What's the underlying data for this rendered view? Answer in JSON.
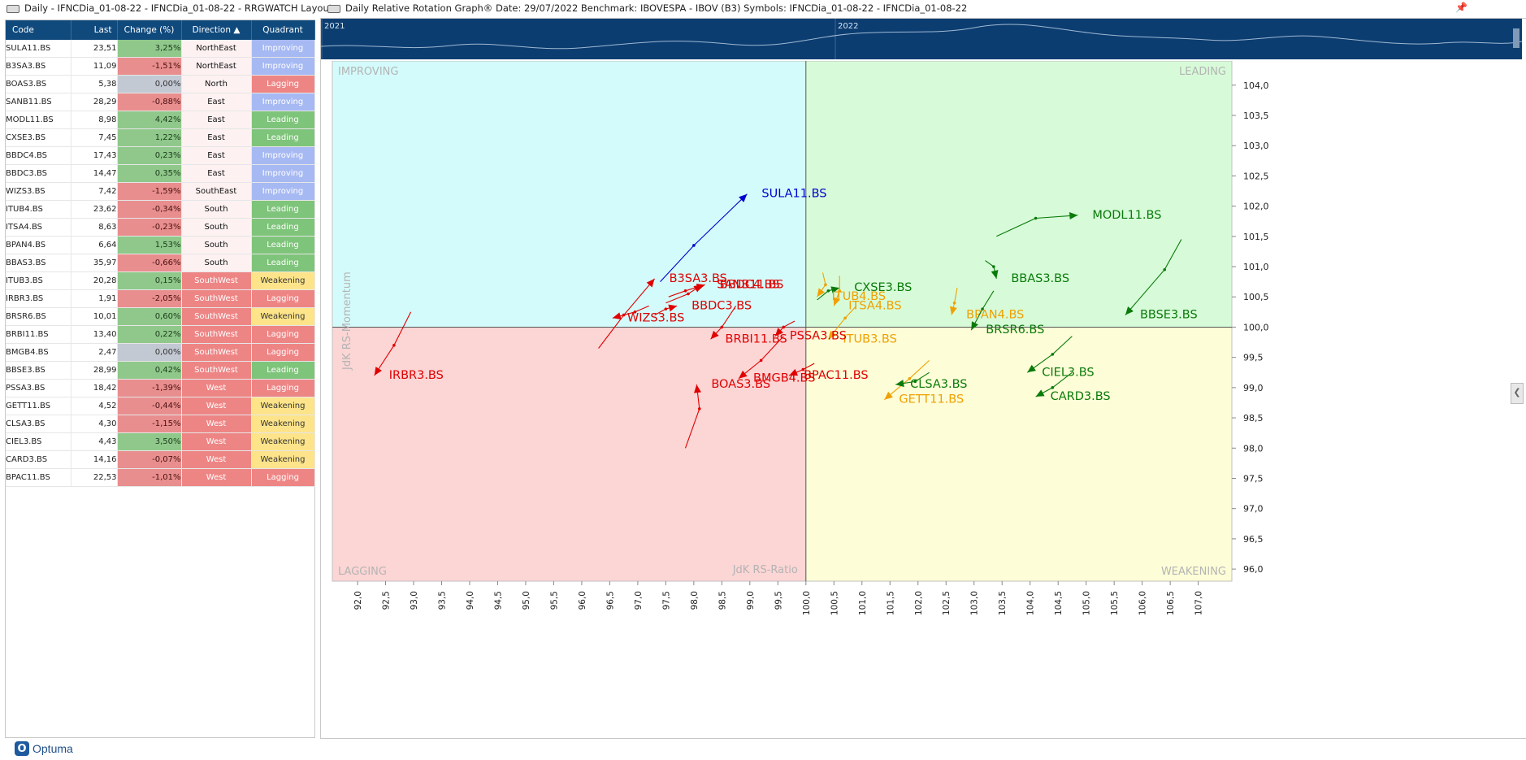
{
  "left_panel": {
    "title": "Daily - IFNCDia_01-08-22 - IFNCDia_01-08-22 - RRGWATCH Layout"
  },
  "right_panel": {
    "title": "Daily Relative Rotation Graph®   Date: 29/07/2022  Benchmark: IBOVESPA - IBOV (B3)  Symbols: IFNCDia_01-08-22 - IFNCDia_01-08-22"
  },
  "columns": [
    "Code",
    "Last",
    "Change (%)",
    "Direction",
    "Quadrant"
  ],
  "rows": [
    {
      "code": "SULA11.BS",
      "last": "23,51",
      "change": "3,25%",
      "direction": "NorthEast",
      "quadrant": "Improving"
    },
    {
      "code": "B3SA3.BS",
      "last": "11,09",
      "change": "-1,51%",
      "direction": "NorthEast",
      "quadrant": "Improving"
    },
    {
      "code": "BOAS3.BS",
      "last": "5,38",
      "change": "0,00%",
      "direction": "North",
      "quadrant": "Lagging"
    },
    {
      "code": "SANB11.BS",
      "last": "28,29",
      "change": "-0,88%",
      "direction": "East",
      "quadrant": "Improving"
    },
    {
      "code": "MODL11.BS",
      "last": "8,98",
      "change": "4,42%",
      "direction": "East",
      "quadrant": "Leading"
    },
    {
      "code": "CXSE3.BS",
      "last": "7,45",
      "change": "1,22%",
      "direction": "East",
      "quadrant": "Leading"
    },
    {
      "code": "BBDC4.BS",
      "last": "17,43",
      "change": "0,23%",
      "direction": "East",
      "quadrant": "Improving"
    },
    {
      "code": "BBDC3.BS",
      "last": "14,47",
      "change": "0,35%",
      "direction": "East",
      "quadrant": "Improving"
    },
    {
      "code": "WIZS3.BS",
      "last": "7,42",
      "change": "-1,59%",
      "direction": "SouthEast",
      "quadrant": "Improving"
    },
    {
      "code": "ITUB4.BS",
      "last": "23,62",
      "change": "-0,34%",
      "direction": "South",
      "quadrant": "Leading"
    },
    {
      "code": "ITSA4.BS",
      "last": "8,63",
      "change": "-0,23%",
      "direction": "South",
      "quadrant": "Leading"
    },
    {
      "code": "BPAN4.BS",
      "last": "6,64",
      "change": "1,53%",
      "direction": "South",
      "quadrant": "Leading"
    },
    {
      "code": "BBAS3.BS",
      "last": "35,97",
      "change": "-0,66%",
      "direction": "South",
      "quadrant": "Leading"
    },
    {
      "code": "ITUB3.BS",
      "last": "20,28",
      "change": "0,15%",
      "direction": "SouthWest",
      "quadrant": "Weakening"
    },
    {
      "code": "IRBR3.BS",
      "last": "1,91",
      "change": "-2,05%",
      "direction": "SouthWest",
      "quadrant": "Lagging"
    },
    {
      "code": "BRSR6.BS",
      "last": "10,01",
      "change": "0,60%",
      "direction": "SouthWest",
      "quadrant": "Weakening"
    },
    {
      "code": "BRBI11.BS",
      "last": "13,40",
      "change": "0,22%",
      "direction": "SouthWest",
      "quadrant": "Lagging"
    },
    {
      "code": "BMGB4.BS",
      "last": "2,47",
      "change": "0,00%",
      "direction": "SouthWest",
      "quadrant": "Lagging"
    },
    {
      "code": "BBSE3.BS",
      "last": "28,99",
      "change": "0,42%",
      "direction": "SouthWest",
      "quadrant": "Leading"
    },
    {
      "code": "PSSA3.BS",
      "last": "18,42",
      "change": "-1,39%",
      "direction": "West",
      "quadrant": "Lagging"
    },
    {
      "code": "GETT11.BS",
      "last": "4,52",
      "change": "-0,44%",
      "direction": "West",
      "quadrant": "Weakening"
    },
    {
      "code": "CLSA3.BS",
      "last": "4,30",
      "change": "-1,15%",
      "direction": "West",
      "quadrant": "Weakening"
    },
    {
      "code": "CIEL3.BS",
      "last": "4,43",
      "change": "3,50%",
      "direction": "West",
      "quadrant": "Weakening"
    },
    {
      "code": "CARD3.BS",
      "last": "14,16",
      "change": "-0,07%",
      "direction": "West",
      "quadrant": "Weakening"
    },
    {
      "code": "BPAC11.BS",
      "last": "22,53",
      "change": "-1,01%",
      "direction": "West",
      "quadrant": "Lagging"
    }
  ],
  "logo_text": "Optuma",
  "timeline": {
    "years": [
      "2021",
      "2022"
    ]
  },
  "chart_data": {
    "type": "scatter",
    "title": "Daily Relative Rotation Graph®",
    "xlabel": "JdK RS-Ratio",
    "ylabel": "JdK RS-Momentum",
    "xlim": [
      91.55,
      107.6
    ],
    "ylim": [
      95.8,
      104.4
    ],
    "xticks": [
      "92,0",
      "92,5",
      "93,0",
      "93,5",
      "94,0",
      "94,5",
      "95,0",
      "95,5",
      "96,0",
      "96,5",
      "97,0",
      "97,5",
      "98,0",
      "98,5",
      "99,0",
      "99,5",
      "100,0",
      "100,5",
      "101,0",
      "101,5",
      "102,0",
      "102,5",
      "103,0",
      "103,5",
      "104,0",
      "104,5",
      "105,0",
      "105,5",
      "106,0",
      "106,5",
      "107,0"
    ],
    "yticks": [
      "96,0",
      "96,5",
      "97,0",
      "97,5",
      "98,0",
      "98,5",
      "99,0",
      "99,5",
      "100,0",
      "100,5",
      "101,0",
      "101,5",
      "102,0",
      "102,5",
      "103,0",
      "103,5",
      "104,0"
    ],
    "quadrants": {
      "improving": "IMPROVING",
      "leading": "LEADING",
      "lagging": "LAGGING",
      "weakening": "WEAKENING"
    },
    "colors": {
      "improving": "#d4fbfb",
      "leading": "#d7fbd8",
      "lagging": "#fcd5d5",
      "weakening": "#fdfdd7",
      "lead_line": "#0a7a0a",
      "lag_line": "#e00000",
      "imp_line": "#0000d0",
      "weak_line": "#f0a000",
      "axis_label": "#b4b4b4"
    },
    "series": [
      {
        "name": "SULA11.BS",
        "color": "#0000d0",
        "points": [
          [
            97.4,
            100.75
          ],
          [
            98.0,
            101.35
          ],
          [
            98.95,
            102.2
          ]
        ]
      },
      {
        "name": "B3SA3.BS",
        "color": "#e00000",
        "points": [
          [
            96.3,
            99.65
          ],
          [
            96.75,
            100.2
          ],
          [
            97.3,
            100.8
          ]
        ]
      },
      {
        "name": "BOAS3.BS",
        "color": "#e00000",
        "points": [
          [
            97.85,
            98.0
          ],
          [
            98.1,
            98.65
          ],
          [
            98.05,
            99.05
          ]
        ]
      },
      {
        "name": "SANB11.BS",
        "color": "#e00000",
        "points": [
          [
            97.5,
            100.4
          ],
          [
            97.9,
            100.55
          ],
          [
            98.15,
            100.7
          ]
        ]
      },
      {
        "name": "MODL11.BS",
        "color": "#0a7a0a",
        "points": [
          [
            103.4,
            101.5
          ],
          [
            104.1,
            101.8
          ],
          [
            104.85,
            101.85
          ]
        ]
      },
      {
        "name": "CXSE3.BS",
        "color": "#0a7a0a",
        "points": [
          [
            100.2,
            100.45
          ],
          [
            100.4,
            100.6
          ],
          [
            100.6,
            100.65
          ]
        ]
      },
      {
        "name": "BBDC4.BS",
        "color": "#e00000",
        "points": [
          [
            97.55,
            100.5
          ],
          [
            97.85,
            100.6
          ],
          [
            98.2,
            100.7
          ]
        ]
      },
      {
        "name": "BBDC3.BS",
        "color": "#e00000",
        "points": [
          [
            97.3,
            100.2
          ],
          [
            97.5,
            100.3
          ],
          [
            97.7,
            100.35
          ]
        ]
      },
      {
        "name": "WIZS3.BS",
        "color": "#e00000",
        "points": [
          [
            97.2,
            100.35
          ],
          [
            96.95,
            100.25
          ],
          [
            96.55,
            100.15
          ]
        ]
      },
      {
        "name": "ITUB4.BS",
        "color": "#f0a000",
        "points": [
          [
            100.3,
            100.9
          ],
          [
            100.35,
            100.7
          ],
          [
            100.2,
            100.5
          ]
        ]
      },
      {
        "name": "ITSA4.BS",
        "color": "#f0a000",
        "points": [
          [
            100.6,
            100.85
          ],
          [
            100.6,
            100.6
          ],
          [
            100.5,
            100.35
          ]
        ]
      },
      {
        "name": "BPAN4.BS",
        "color": "#f0a000",
        "points": [
          [
            102.7,
            100.65
          ],
          [
            102.65,
            100.4
          ],
          [
            102.6,
            100.2
          ]
        ]
      },
      {
        "name": "BBAS3.BS",
        "color": "#0a7a0a",
        "points": [
          [
            103.2,
            101.1
          ],
          [
            103.35,
            101.0
          ],
          [
            103.4,
            100.8
          ]
        ]
      },
      {
        "name": "ITUB3.BS",
        "color": "#f0a000",
        "points": [
          [
            100.9,
            100.35
          ],
          [
            100.7,
            100.15
          ],
          [
            100.4,
            99.8
          ]
        ]
      },
      {
        "name": "IRBR3.BS",
        "color": "#e00000",
        "points": [
          [
            92.95,
            100.25
          ],
          [
            92.65,
            99.7
          ],
          [
            92.3,
            99.2
          ]
        ]
      },
      {
        "name": "BRSR6.BS",
        "color": "#0a7a0a",
        "points": [
          [
            103.35,
            100.6
          ],
          [
            103.15,
            100.3
          ],
          [
            102.95,
            99.95
          ]
        ]
      },
      {
        "name": "BRBI11.BS",
        "color": "#e00000",
        "points": [
          [
            98.75,
            100.35
          ],
          [
            98.5,
            100.0
          ],
          [
            98.3,
            99.8
          ]
        ]
      },
      {
        "name": "BMGB4.BS",
        "color": "#e00000",
        "points": [
          [
            99.6,
            99.85
          ],
          [
            99.2,
            99.45
          ],
          [
            98.8,
            99.15
          ]
        ]
      },
      {
        "name": "BBSE3.BS",
        "color": "#0a7a0a",
        "points": [
          [
            106.7,
            101.45
          ],
          [
            106.4,
            100.95
          ],
          [
            105.7,
            100.2
          ]
        ]
      },
      {
        "name": "PSSA3.BS",
        "color": "#e00000",
        "points": [
          [
            99.8,
            100.1
          ],
          [
            99.6,
            100.0
          ],
          [
            99.45,
            99.85
          ]
        ]
      },
      {
        "name": "GETT11.BS",
        "color": "#f0a000",
        "points": [
          [
            102.2,
            99.45
          ],
          [
            101.85,
            99.15
          ],
          [
            101.4,
            98.8
          ]
        ]
      },
      {
        "name": "CLSA3.BS",
        "color": "#0a7a0a",
        "points": [
          [
            102.2,
            99.25
          ],
          [
            101.95,
            99.1
          ],
          [
            101.6,
            99.05
          ]
        ]
      },
      {
        "name": "CIEL3.BS",
        "color": "#0a7a0a",
        "points": [
          [
            104.75,
            99.85
          ],
          [
            104.4,
            99.55
          ],
          [
            103.95,
            99.25
          ]
        ]
      },
      {
        "name": "CARD3.BS",
        "color": "#0a7a0a",
        "points": [
          [
            104.75,
            99.25
          ],
          [
            104.4,
            99.0
          ],
          [
            104.1,
            98.85
          ]
        ]
      },
      {
        "name": "BPAC11.BS",
        "color": "#e00000",
        "points": [
          [
            100.15,
            99.4
          ],
          [
            99.95,
            99.3
          ],
          [
            99.7,
            99.2
          ]
        ]
      }
    ]
  }
}
